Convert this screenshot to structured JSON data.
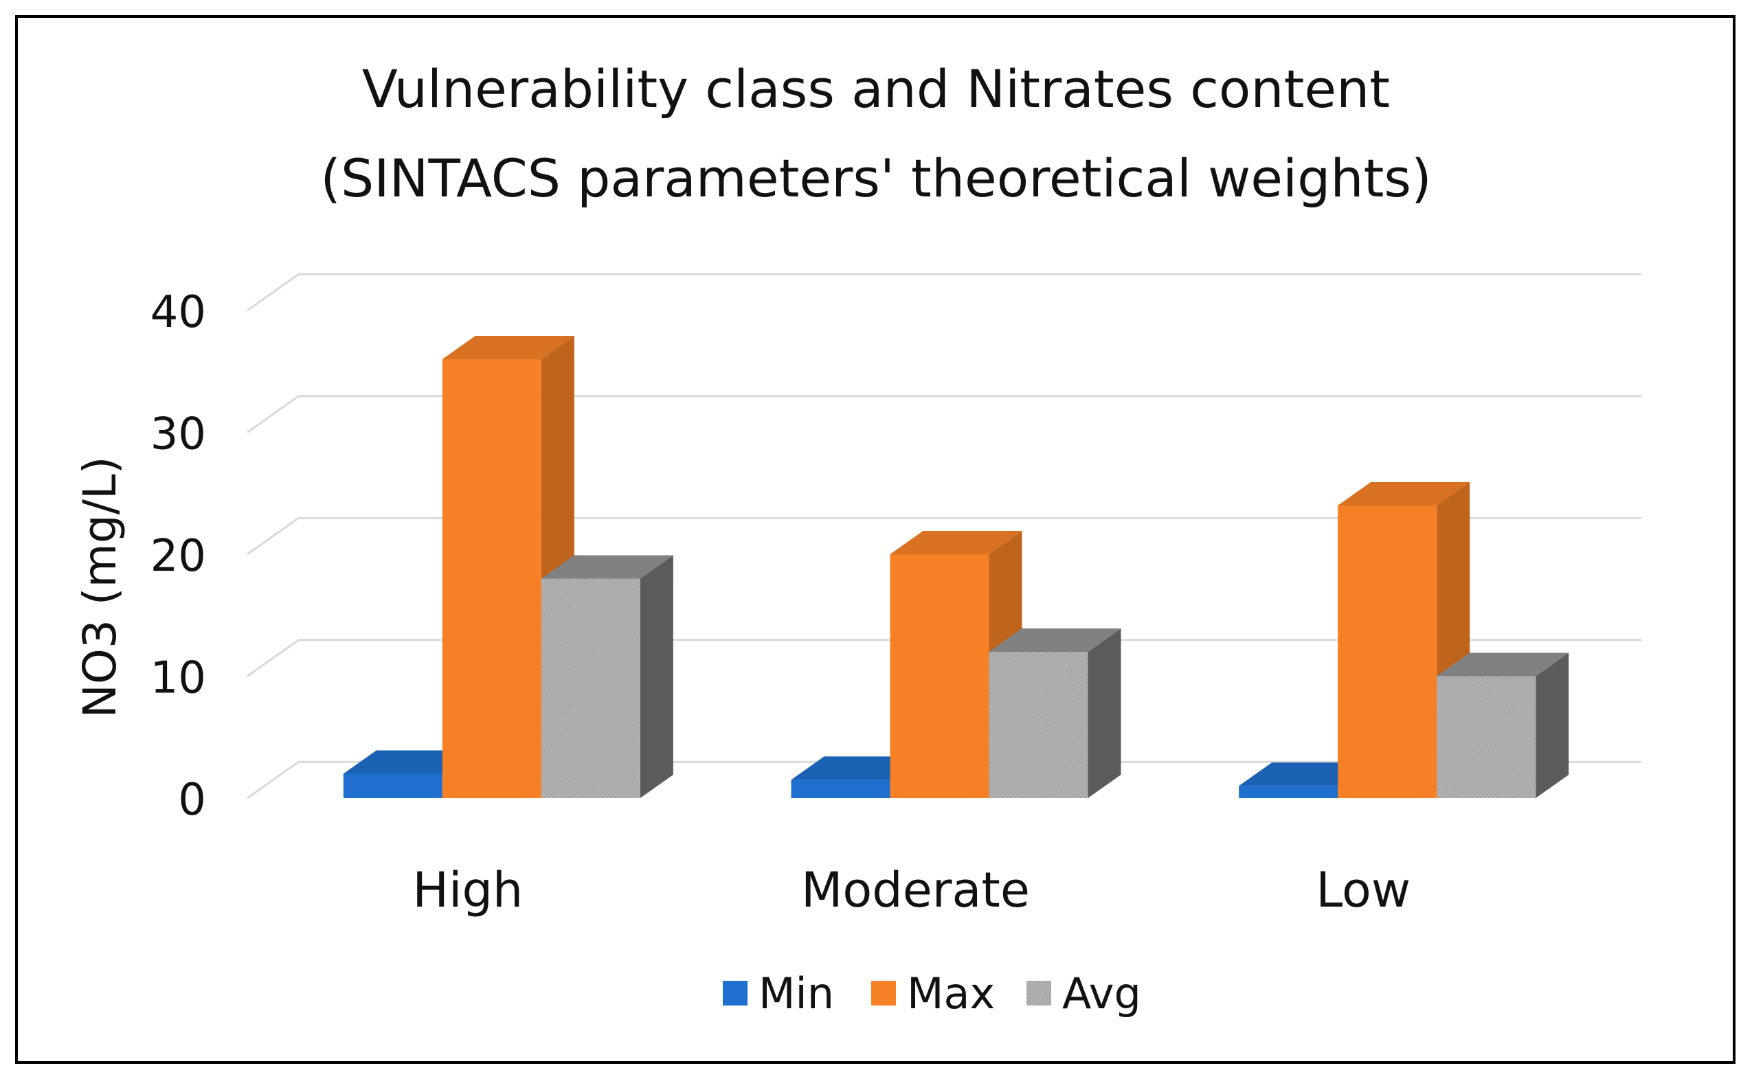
{
  "chart_data": {
    "type": "bar",
    "style": "3d-clustered-column",
    "title": "Vulnerability class and Nitrates content",
    "subtitle": "(SINTACS parameters' theoretical weights)",
    "xlabel": "",
    "ylabel": "NO3 (mg/L)",
    "ylim": [
      0,
      40
    ],
    "yticks": [
      0,
      10,
      20,
      30,
      40
    ],
    "grid": true,
    "legend_position": "bottom-center",
    "categories": [
      "High",
      "Moderate",
      "Low"
    ],
    "series": [
      {
        "name": "Min",
        "color": "#1f6fce",
        "values": [
          2,
          1.5,
          1
        ]
      },
      {
        "name": "Max",
        "color": "#f58025",
        "values": [
          36,
          20,
          24
        ]
      },
      {
        "name": "Avg",
        "color": "#a6a6a6",
        "values": [
          18,
          12,
          10
        ]
      }
    ]
  }
}
